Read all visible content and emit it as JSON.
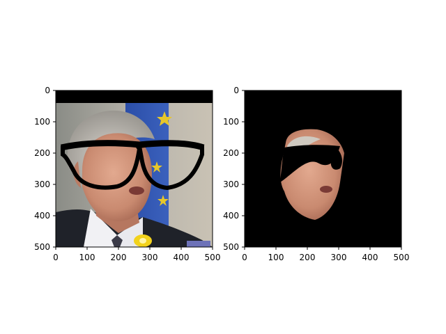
{
  "figure": {
    "background": "#ffffff",
    "panels": [
      {
        "name": "original-with-glasses",
        "content": "photo of a grey-haired man in a suit with drawn black glasses, flag in background",
        "xlim": [
          0,
          500
        ],
        "ylim": [
          500,
          0
        ],
        "x_ticks": [
          "0",
          "100",
          "200",
          "300",
          "400",
          "500"
        ],
        "y_ticks": [
          "0",
          "100",
          "200",
          "300",
          "400",
          "500"
        ]
      },
      {
        "name": "face-mask-with-glasses",
        "content": "same face segmented on black background with glasses",
        "xlim": [
          0,
          500
        ],
        "ylim": [
          500,
          0
        ],
        "x_ticks": [
          "0",
          "100",
          "200",
          "300",
          "400",
          "500"
        ],
        "y_ticks": [
          "0",
          "100",
          "200",
          "300",
          "400",
          "500"
        ]
      }
    ]
  }
}
